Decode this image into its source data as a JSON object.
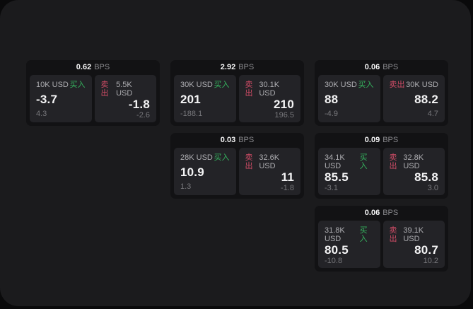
{
  "labels": {
    "bps_unit": "BPS",
    "buy": "买入",
    "sell": "卖出"
  },
  "colors": {
    "background": "#0a0a0b",
    "surface": "#1b1b1d",
    "card": "#121214",
    "tile": "#232327",
    "buy_accent": "#35b45e",
    "sell_accent": "#cf4c66"
  },
  "cards": [
    {
      "bps": "0.62",
      "buy": {
        "amount": "10K USD",
        "price": "-3.7",
        "delta": "4.3"
      },
      "sell": {
        "amount": "5.5K USD",
        "price": "-1.8",
        "delta": "-2.6"
      }
    },
    {
      "bps": "2.92",
      "buy": {
        "amount": "30K USD",
        "price": "201",
        "delta": "-188.1"
      },
      "sell": {
        "amount": "30.1K USD",
        "price": "210",
        "delta": "196.5"
      }
    },
    {
      "bps": "0.06",
      "buy": {
        "amount": "30K USD",
        "price": "88",
        "delta": "-4.9"
      },
      "sell": {
        "amount": "30K USD",
        "price": "88.2",
        "delta": "4.7"
      }
    },
    {
      "bps": "0.03",
      "buy": {
        "amount": "28K USD",
        "price": "10.9",
        "delta": "1.3"
      },
      "sell": {
        "amount": "32.6K USD",
        "price": "11",
        "delta": "-1.8"
      }
    },
    {
      "bps": "0.09",
      "buy": {
        "amount": "34.1K USD",
        "price": "85.5",
        "delta": "-3.1"
      },
      "sell": {
        "amount": "32.8K USD",
        "price": "85.8",
        "delta": "3.0"
      }
    },
    {
      "bps": "0.06",
      "buy": {
        "amount": "31.8K USD",
        "price": "80.5",
        "delta": "-10.8"
      },
      "sell": {
        "amount": "39.1K USD",
        "price": "80.7",
        "delta": "10.2"
      }
    }
  ]
}
